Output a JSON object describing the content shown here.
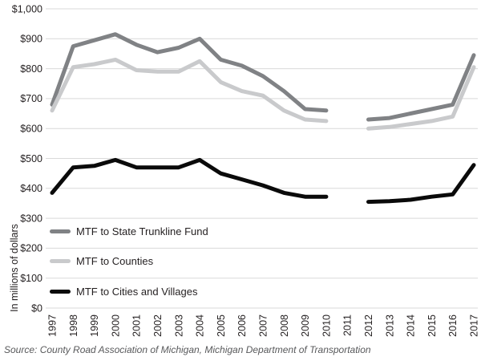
{
  "chart_data": {
    "type": "line",
    "title": "",
    "ylabel": "In millions of dollars",
    "units": "millions of dollars",
    "x_tick_labels": [
      "1997",
      "1998",
      "1999",
      "2000",
      "2001",
      "2002",
      "2003",
      "2004",
      "2005",
      "2006",
      "2007",
      "2008",
      "2009",
      "2010",
      "2011",
      "2012",
      "2013",
      "2014",
      "2015",
      "2016",
      "2017"
    ],
    "ylim": [
      0,
      1000
    ],
    "y_ticks": [
      0,
      100,
      200,
      300,
      400,
      500,
      600,
      700,
      800,
      900,
      1000
    ],
    "y_tick_labels": [
      "$0",
      "$100",
      "$200",
      "$300",
      "$400",
      "$500",
      "$600",
      "$700",
      "$800",
      "$900",
      "$1,000"
    ],
    "grid": true,
    "grid_color": "#d9d9d9",
    "legend_position": "inside lower-left",
    "missing_data_years": [
      "2011"
    ],
    "series": [
      {
        "name": "MTF to State Trunkline Fund",
        "color": "#808285",
        "stroke_width": 5,
        "values": [
          680,
          875,
          895,
          915,
          880,
          855,
          870,
          900,
          830,
          810,
          775,
          725,
          665,
          660,
          null,
          630,
          635,
          650,
          665,
          680,
          845
        ]
      },
      {
        "name": "MTF to Counties",
        "color": "#c9cacc",
        "stroke_width": 5,
        "values": [
          660,
          805,
          815,
          830,
          795,
          790,
          790,
          825,
          755,
          725,
          710,
          660,
          630,
          625,
          null,
          600,
          605,
          615,
          625,
          640,
          805
        ]
      },
      {
        "name": "MTF to Cities and Villages",
        "color": "#0a0a0a",
        "stroke_width": 5,
        "values": [
          385,
          470,
          475,
          495,
          470,
          470,
          470,
          495,
          450,
          430,
          410,
          385,
          372,
          372,
          null,
          355,
          357,
          362,
          372,
          380,
          478
        ]
      }
    ]
  },
  "source_note": "Source: County Road Association of Michigan, Michigan Department of Transportation"
}
